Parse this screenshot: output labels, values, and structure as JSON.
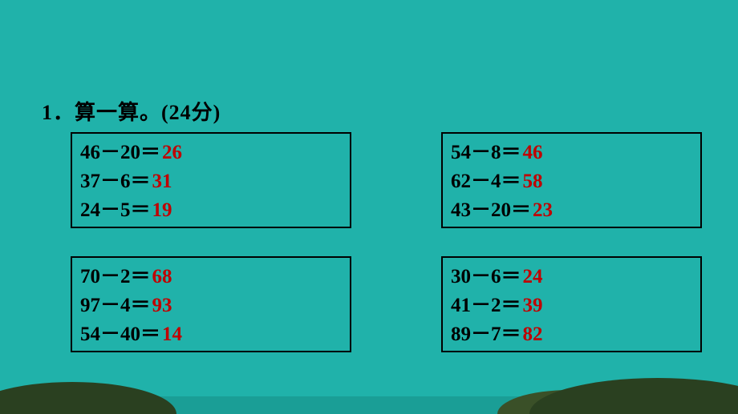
{
  "title": "1．算一算。(24分)",
  "colors": {
    "background": "#20b2aa",
    "text": "#000000",
    "answer": "#c00000",
    "border": "#000000",
    "footer_strip": "#1a9e96",
    "hill_dark": "#2a4020",
    "hill_light": "#3a5028"
  },
  "typography": {
    "title_fontsize": 26,
    "expr_fontsize": 25,
    "font_weight": "bold"
  },
  "boxes": {
    "top_left": {
      "rows": [
        {
          "expr": "46－20＝",
          "ans": "26"
        },
        {
          "expr": "37－6＝",
          "ans": "31"
        },
        {
          "expr": "24－5＝",
          "ans": "19"
        }
      ]
    },
    "top_right": {
      "rows": [
        {
          "expr": "54－8＝",
          "ans": "46"
        },
        {
          "expr": "62－4＝",
          "ans": "58"
        },
        {
          "expr": "43－20＝",
          "ans": "23"
        }
      ]
    },
    "bottom_left": {
      "rows": [
        {
          "expr": "70－2＝",
          "ans": "68"
        },
        {
          "expr": "97－4＝",
          "ans": "93"
        },
        {
          "expr": "54－40＝",
          "ans": "14"
        }
      ]
    },
    "bottom_right": {
      "rows": [
        {
          "expr": "30－6＝",
          "ans": "24"
        },
        {
          "expr": "41－2＝",
          "ans": "39"
        },
        {
          "expr": "89－7＝",
          "ans": "82"
        }
      ]
    }
  }
}
